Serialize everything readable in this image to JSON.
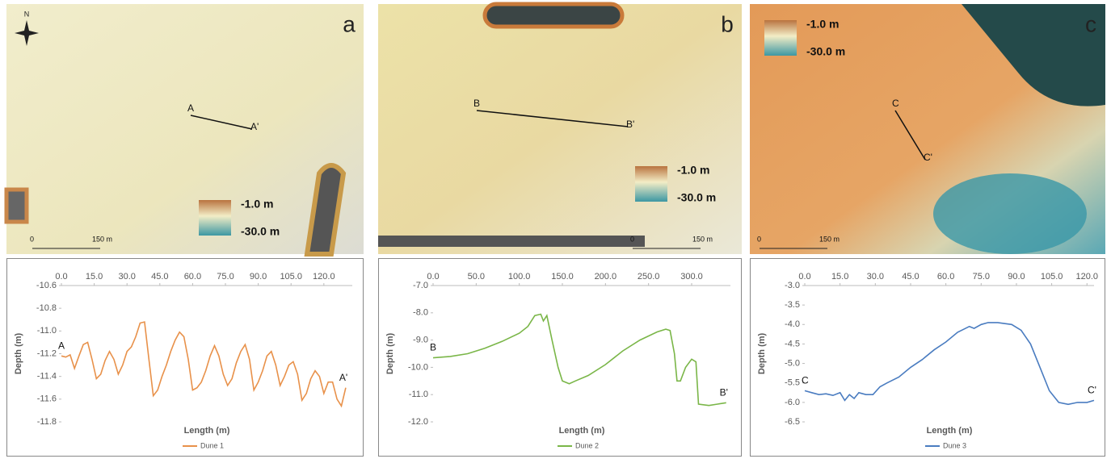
{
  "north": "N",
  "maps": [
    {
      "label": "a",
      "profile": [
        "A",
        "A'"
      ],
      "legend": [
        "-1.0 m",
        "-30.0 m"
      ],
      "scale": [
        "0",
        "150 m"
      ]
    },
    {
      "label": "b",
      "profile": [
        "B",
        "B'"
      ],
      "legend": [
        "-1.0 m",
        "-30.0 m"
      ],
      "scale": [
        "0",
        "150 m"
      ]
    },
    {
      "label": "c",
      "profile": [
        "C",
        "C'"
      ],
      "legend": [
        "-1.0 m",
        "-30.0 m"
      ],
      "scale": [
        "0",
        "150 m"
      ]
    }
  ],
  "chart_data": [
    {
      "type": "line",
      "x_label": "Length (m)",
      "y_label": "Depth (m)",
      "annotations": [
        "A",
        "A'"
      ],
      "xlim": [
        0,
        133
      ],
      "ylim": [
        -11.8,
        -10.6
      ],
      "xticks": [
        {
          "value": 0,
          "label": "0.0"
        },
        {
          "value": 15,
          "label": "15.0"
        },
        {
          "value": 30,
          "label": "30.0"
        },
        {
          "value": 45,
          "label": "45.0"
        },
        {
          "value": 60,
          "label": "60.0"
        },
        {
          "value": 75,
          "label": "75.0"
        },
        {
          "value": 90,
          "label": "90.0"
        },
        {
          "value": 105,
          "label": "105.0"
        },
        {
          "value": 120,
          "label": "120.0"
        }
      ],
      "yticks": [
        -10.6,
        -10.8,
        {
          "value": -11,
          "label": "-11.0"
        },
        -11.2,
        -11.4,
        -11.6,
        -11.8
      ],
      "x": [
        0,
        2,
        4,
        6,
        8,
        10,
        12,
        14,
        16,
        18,
        20,
        22,
        24,
        26,
        28,
        30,
        32,
        34,
        36,
        38,
        40,
        42,
        44,
        46,
        48,
        50,
        52,
        54,
        56,
        58,
        60,
        62,
        64,
        66,
        68,
        70,
        72,
        74,
        76,
        78,
        80,
        82,
        84,
        86,
        88,
        90,
        92,
        94,
        96,
        98,
        100,
        102,
        104,
        106,
        108,
        110,
        112,
        114,
        116,
        118,
        120,
        122,
        124,
        126,
        128,
        130
      ],
      "series": [
        {
          "name": "Dune 1",
          "color": "#e8914a",
          "values": [
            -11.22,
            -11.23,
            -11.21,
            -11.33,
            -11.22,
            -11.12,
            -11.1,
            -11.25,
            -11.42,
            -11.38,
            -11.26,
            -11.18,
            -11.25,
            -11.38,
            -11.3,
            -11.18,
            -11.14,
            -11.05,
            -10.93,
            -10.92,
            -11.25,
            -11.57,
            -11.52,
            -11.4,
            -11.3,
            -11.18,
            -11.08,
            -11.01,
            -11.05,
            -11.25,
            -11.52,
            -11.5,
            -11.45,
            -11.35,
            -11.22,
            -11.13,
            -11.22,
            -11.38,
            -11.48,
            -11.42,
            -11.28,
            -11.18,
            -11.12,
            -11.25,
            -11.52,
            -11.45,
            -11.35,
            -11.22,
            -11.18,
            -11.3,
            -11.48,
            -11.4,
            -11.3,
            -11.27,
            -11.38,
            -11.61,
            -11.55,
            -11.42,
            -11.35,
            -11.4,
            -11.55,
            -11.45,
            -11.45,
            -11.6,
            -11.66,
            -11.5
          ]
        }
      ]
    },
    {
      "type": "line",
      "x_label": "Length (m)",
      "y_label": "Depth (m)",
      "annotations": [
        "B",
        "B'"
      ],
      "xlim": [
        0,
        345
      ],
      "ylim": [
        -12,
        -7
      ],
      "xticks": [
        {
          "value": 0,
          "label": "0.0"
        },
        {
          "value": 50,
          "label": "50.0"
        },
        {
          "value": 100,
          "label": "100.0"
        },
        {
          "value": 150,
          "label": "150.0"
        },
        {
          "value": 200,
          "label": "200.0"
        },
        {
          "value": 250,
          "label": "250.0"
        },
        {
          "value": 300,
          "label": "300.0"
        }
      ],
      "yticks": [
        {
          "value": -7,
          "label": "-7.0"
        },
        {
          "value": -8,
          "label": "-8.0"
        },
        {
          "value": -9,
          "label": "-9.0"
        },
        {
          "value": -10,
          "label": "-10.0"
        },
        {
          "value": -11,
          "label": "-11.0"
        },
        {
          "value": -12,
          "label": "-12.0"
        }
      ],
      "x": [
        0,
        20,
        40,
        60,
        80,
        100,
        110,
        118,
        125,
        128,
        132,
        138,
        145,
        150,
        158,
        165,
        180,
        200,
        220,
        240,
        260,
        270,
        275,
        280,
        283,
        287,
        293,
        300,
        305,
        308,
        320,
        330,
        340
      ],
      "series": [
        {
          "name": "Dune 2",
          "color": "#7ab648",
          "values": [
            -9.65,
            -9.6,
            -9.5,
            -9.3,
            -9.05,
            -8.75,
            -8.5,
            -8.1,
            -8.05,
            -8.3,
            -8.1,
            -9.0,
            -10.0,
            -10.5,
            -10.6,
            -10.5,
            -10.3,
            -9.9,
            -9.4,
            -9.0,
            -8.7,
            -8.6,
            -8.65,
            -9.5,
            -10.5,
            -10.5,
            -10.0,
            -9.7,
            -9.8,
            -11.35,
            -11.4,
            -11.35,
            -11.3
          ]
        }
      ]
    },
    {
      "type": "line",
      "x_label": "Length (m)",
      "y_label": "Depth (m)",
      "annotations": [
        "C",
        "C'"
      ],
      "xlim": [
        0,
        123
      ],
      "ylim": [
        -6.5,
        -3
      ],
      "xticks": [
        {
          "value": 0,
          "label": "0.0"
        },
        {
          "value": 15,
          "label": "15.0"
        },
        {
          "value": 30,
          "label": "30.0"
        },
        {
          "value": 45,
          "label": "45.0"
        },
        {
          "value": 60,
          "label": "60.0"
        },
        {
          "value": 75,
          "label": "75.0"
        },
        {
          "value": 90,
          "label": "90.0"
        },
        {
          "value": 105,
          "label": "105.0"
        },
        {
          "value": 120,
          "label": "120.0"
        }
      ],
      "yticks": [
        {
          "value": -3,
          "label": "-3.0"
        },
        -3.5,
        {
          "value": -4,
          "label": "-4.0"
        },
        -4.5,
        {
          "value": -5,
          "label": "-5.0"
        },
        -5.5,
        {
          "value": -6,
          "label": "-6.0"
        },
        -6.5
      ],
      "x": [
        0,
        3,
        6,
        9,
        12,
        15,
        17,
        19,
        21,
        23,
        26,
        29,
        32,
        35,
        40,
        45,
        50,
        55,
        60,
        65,
        70,
        72,
        75,
        78,
        82,
        88,
        92,
        96,
        100,
        104,
        108,
        112,
        116,
        120,
        123
      ],
      "series": [
        {
          "name": "Dune 3",
          "color": "#4a7cc0",
          "values": [
            -5.7,
            -5.75,
            -5.8,
            -5.78,
            -5.82,
            -5.75,
            -5.95,
            -5.8,
            -5.9,
            -5.75,
            -5.8,
            -5.8,
            -5.6,
            -5.5,
            -5.35,
            -5.1,
            -4.9,
            -4.65,
            -4.45,
            -4.2,
            -4.05,
            -4.1,
            -4.0,
            -3.95,
            -3.95,
            -4.0,
            -4.15,
            -4.5,
            -5.1,
            -5.7,
            -6.0,
            -6.05,
            -6.0,
            -6.0,
            -5.95
          ]
        }
      ]
    }
  ]
}
